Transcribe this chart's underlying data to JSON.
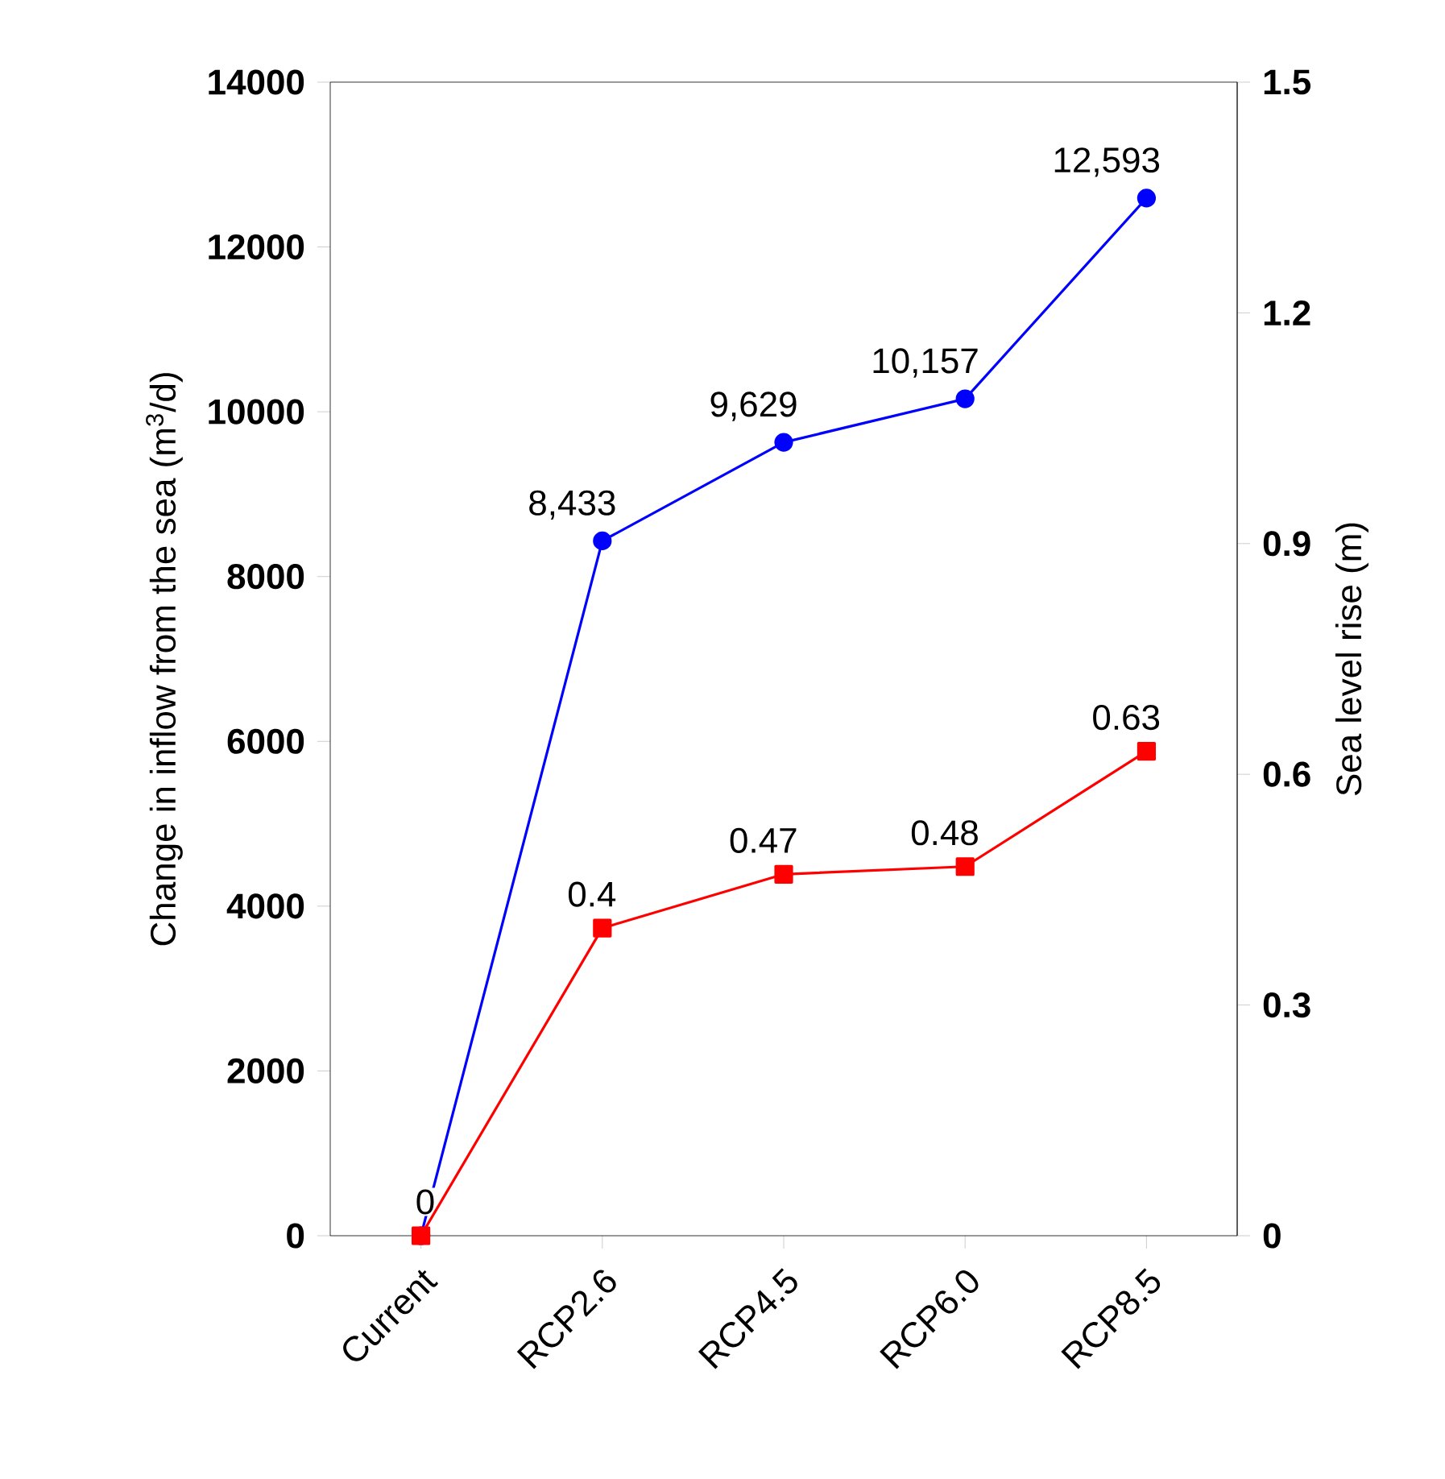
{
  "chart_data": {
    "type": "line",
    "categories": [
      "Current",
      "RCP2.6",
      "RCP4.5",
      "RCP6.0",
      "RCP8.5"
    ],
    "series": [
      {
        "color": "#0000ff",
        "marker": "circle",
        "values": [
          0,
          8433,
          9629,
          10157,
          12593
        ],
        "value_labels": [
          "0",
          "8,433",
          "9,629",
          "10,157",
          "12,593"
        ]
      },
      {
        "color": "#ff0000",
        "marker": "square",
        "axis": "y2",
        "values": [
          0,
          0.4,
          0.47,
          0.48,
          0.63
        ],
        "value_labels": [
          null,
          "0.4",
          "0.47",
          "0.48",
          "0.63"
        ]
      }
    ],
    "ylabel": "Change in inflow from the sea (m$^{3}$/d)",
    "y2label": "Sea level rise (m)",
    "ylim": [
      0,
      14000
    ],
    "yticks": [
      0,
      2000,
      4000,
      6000,
      8000,
      10000,
      12000,
      14000
    ],
    "y2lim": [
      0,
      1.5
    ],
    "y2ticks": [
      0,
      0.3,
      0.6,
      0.9,
      1.2,
      1.5
    ],
    "grid": false,
    "line_style": "solid"
  }
}
